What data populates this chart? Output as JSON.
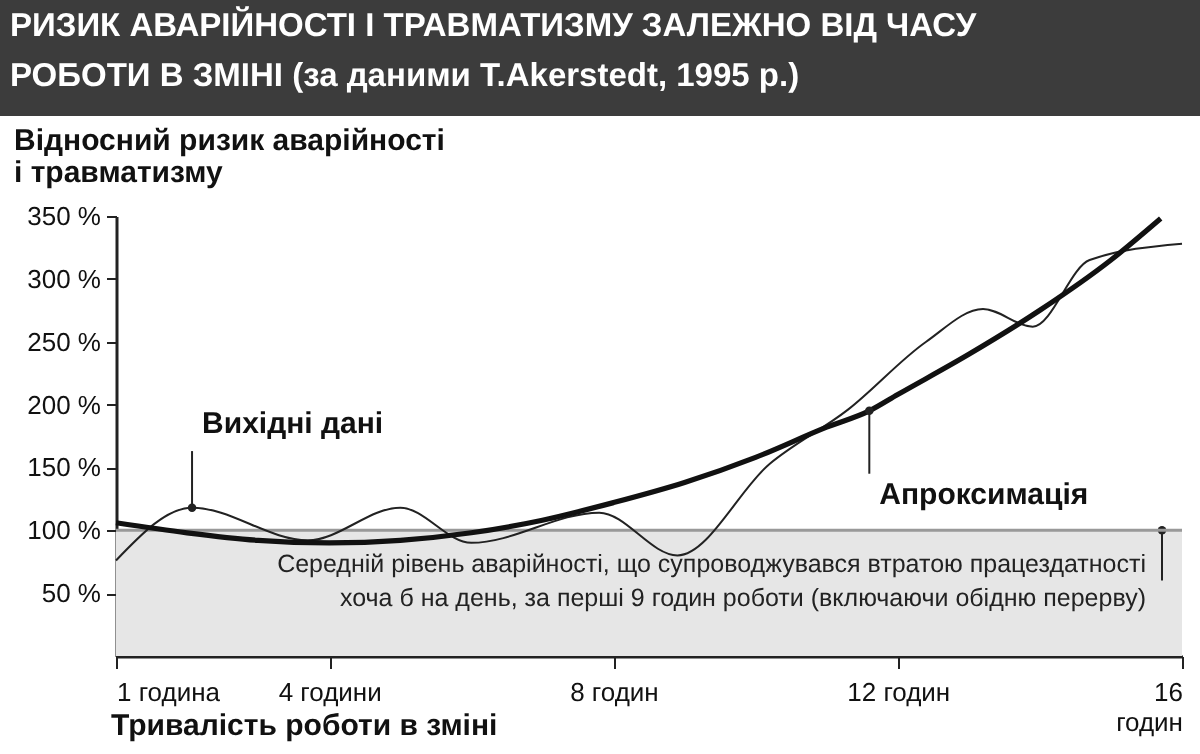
{
  "chart_data": {
    "type": "line",
    "title": "РИЗИК АВАРІЙНОСТІ І ТРАВМАТИЗМУ ЗАЛЕЖНО ВІД ЧАСУ\nРОБОТИ В ЗМІНІ (за даними T.Akerstedt, 1995 р.)",
    "ylabel": "Відносний ризик аварійності\nі травматизму",
    "xlabel": "Тривалість роботи в зміні",
    "xlim": [
      1,
      16
    ],
    "ylim": [
      0,
      350
    ],
    "xticks": [
      {
        "value": 1,
        "label": "1 година"
      },
      {
        "value": 4,
        "label": "4 години"
      },
      {
        "value": 8,
        "label": "8 годин"
      },
      {
        "value": 12,
        "label": "12 годин"
      },
      {
        "value": 16,
        "label": "16\nгодин"
      }
    ],
    "yticks": [
      {
        "value": 50,
        "label": "50 %"
      },
      {
        "value": 100,
        "label": "100 %"
      },
      {
        "value": 150,
        "label": "150 %"
      },
      {
        "value": 200,
        "label": "200 %"
      },
      {
        "value": 250,
        "label": "250 %"
      },
      {
        "value": 300,
        "label": "300 %"
      },
      {
        "value": 350,
        "label": "350 %"
      }
    ],
    "series": [
      {
        "name": "Вихідні дані",
        "color": "#222222",
        "line_style": "solid",
        "x": [
          1,
          2.07,
          3.7,
          5.0,
          6.0,
          7.8,
          8.9,
          10.2,
          11.3,
          12.4,
          13.2,
          13.9,
          14.7,
          16
        ],
        "values": [
          76,
          118,
          92,
          118,
          90,
          114,
          80,
          153,
          196,
          250,
          276,
          262,
          315,
          328
        ]
      },
      {
        "name": "Апроксимація",
        "color": "#111111",
        "line_style": "solid",
        "x": [
          1,
          2,
          3,
          4,
          5,
          6,
          7,
          8,
          9,
          10,
          11,
          11.6,
          12,
          13,
          14,
          15,
          15.7
        ],
        "values": [
          106,
          98,
          92,
          90,
          92,
          98,
          108,
          122,
          138,
          158,
          182,
          195,
          208,
          240,
          275,
          315,
          348
        ]
      }
    ],
    "bands": [
      {
        "axis": "y",
        "from": 0,
        "to": 100,
        "color": "#e6e6e6",
        "label": "Середній рівень аварійності, що супроводжувався втратою працездатності\nхоча б на день, за перші 9 годин роботи (включаючи обідню перерву)"
      }
    ],
    "ref_lines": [
      {
        "axis": "y",
        "value": 100,
        "color": "#999999",
        "line_style": "solid"
      }
    ],
    "grid": false,
    "marker": "none"
  }
}
